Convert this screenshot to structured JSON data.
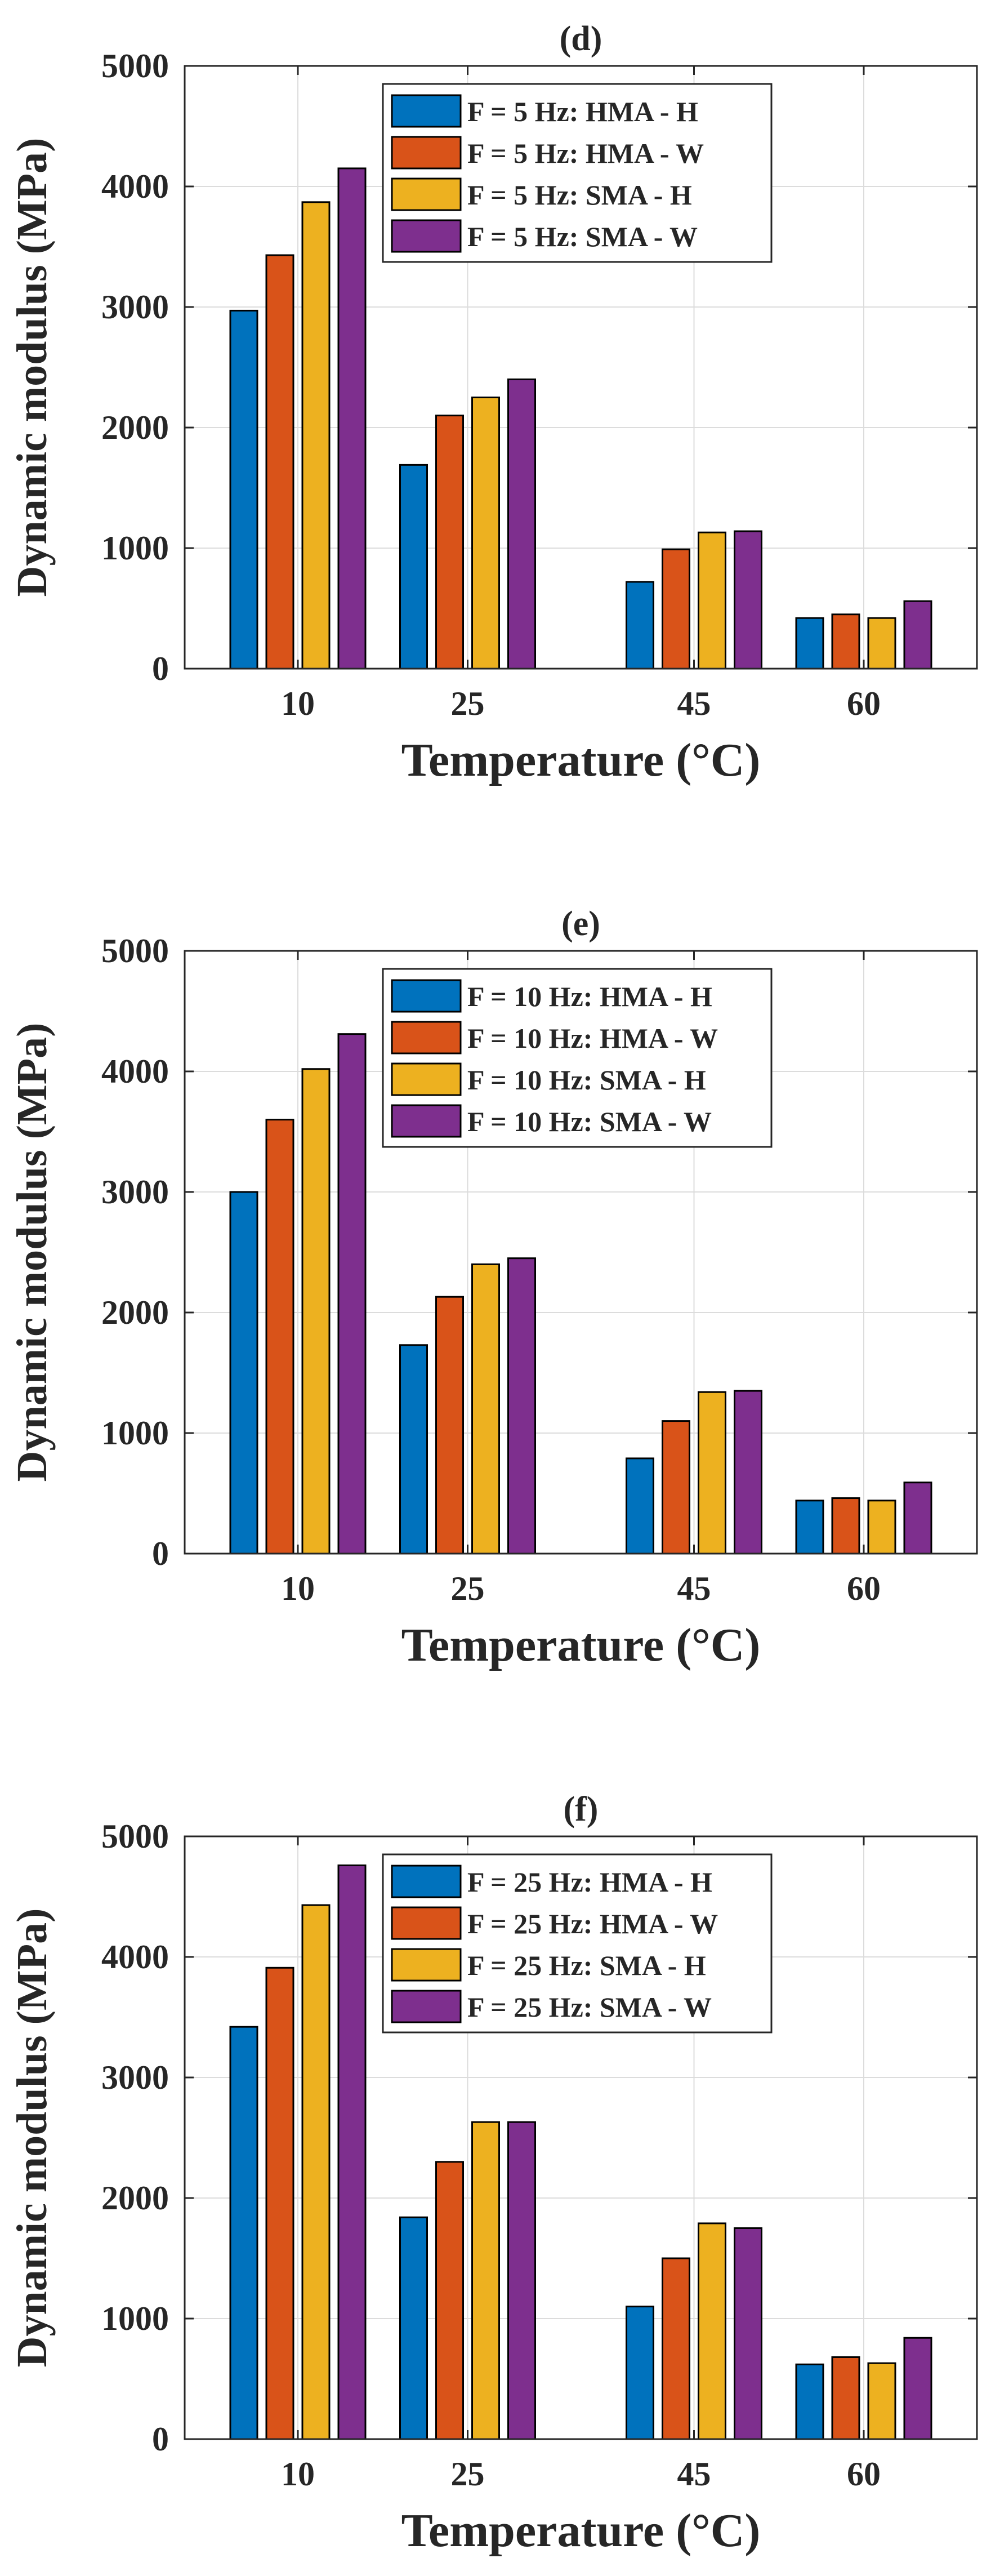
{
  "chart_data": [
    {
      "type": "bar",
      "title": "(d)",
      "xlabel": "Temperature (°C)",
      "ylabel": "Dynamic modulus (MPa)",
      "categories": [
        "10",
        "25",
        "45",
        "60"
      ],
      "x": [
        10,
        25,
        45,
        60
      ],
      "ylim": [
        0,
        5000
      ],
      "yticks": [
        0,
        1000,
        2000,
        3000,
        4000,
        5000
      ],
      "grid": true,
      "legend_position": "top-center",
      "series": [
        {
          "name": "F = 5 Hz: HMA - H",
          "color": "#0072BD",
          "values": [
            2970,
            1690,
            720,
            420
          ]
        },
        {
          "name": "F = 5 Hz: HMA - W",
          "color": "#D95319",
          "values": [
            3430,
            2100,
            990,
            450
          ]
        },
        {
          "name": "F = 5 Hz: SMA - H",
          "color": "#EDB120",
          "values": [
            3870,
            2250,
            1130,
            420
          ]
        },
        {
          "name": "F = 5 Hz: SMA - W",
          "color": "#7E2F8E",
          "values": [
            4150,
            2400,
            1140,
            560
          ]
        }
      ]
    },
    {
      "type": "bar",
      "title": "(e)",
      "xlabel": "Temperature (°C)",
      "ylabel": "Dynamic modulus (MPa)",
      "categories": [
        "10",
        "25",
        "45",
        "60"
      ],
      "x": [
        10,
        25,
        45,
        60
      ],
      "ylim": [
        0,
        5000
      ],
      "yticks": [
        0,
        1000,
        2000,
        3000,
        4000,
        5000
      ],
      "grid": true,
      "legend_position": "top-center",
      "series": [
        {
          "name": "F = 10 Hz: HMA - H",
          "color": "#0072BD",
          "values": [
            3000,
            1730,
            790,
            440
          ]
        },
        {
          "name": "F = 10 Hz: HMA - W",
          "color": "#D95319",
          "values": [
            3600,
            2130,
            1100,
            460
          ]
        },
        {
          "name": "F = 10 Hz: SMA - H",
          "color": "#EDB120",
          "values": [
            4020,
            2400,
            1340,
            440
          ]
        },
        {
          "name": "F = 10 Hz: SMA - W",
          "color": "#7E2F8E",
          "values": [
            4310,
            2450,
            1350,
            590
          ]
        }
      ]
    },
    {
      "type": "bar",
      "title": "(f)",
      "xlabel": "Temperature (°C)",
      "ylabel": "Dynamic modulus (MPa)",
      "categories": [
        "10",
        "25",
        "45",
        "60"
      ],
      "x": [
        10,
        25,
        45,
        60
      ],
      "ylim": [
        0,
        5000
      ],
      "yticks": [
        0,
        1000,
        2000,
        3000,
        4000,
        5000
      ],
      "grid": true,
      "legend_position": "top-center",
      "series": [
        {
          "name": "F = 25 Hz: HMA - H",
          "color": "#0072BD",
          "values": [
            3420,
            1840,
            1100,
            620
          ]
        },
        {
          "name": "F = 25 Hz: HMA - W",
          "color": "#D95319",
          "values": [
            3910,
            2300,
            1500,
            680
          ]
        },
        {
          "name": "F = 25 Hz: SMA - H",
          "color": "#EDB120",
          "values": [
            4430,
            2630,
            1790,
            630
          ]
        },
        {
          "name": "F = 25 Hz: SMA - W",
          "color": "#7E2F8E",
          "values": [
            4760,
            2630,
            1750,
            840
          ]
        }
      ]
    }
  ]
}
